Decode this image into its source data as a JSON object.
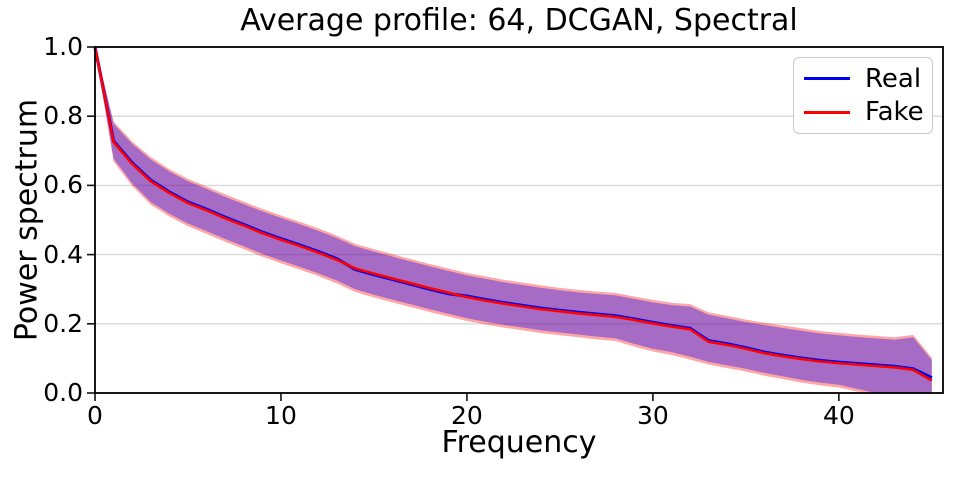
{
  "chart_data": {
    "type": "line",
    "title": "Average profile: 64, DCGAN, Spectral",
    "xlabel": "Frequency",
    "ylabel": "Power spectrum",
    "xlim": [
      0,
      45.6
    ],
    "ylim": [
      0.0,
      1.0
    ],
    "xticks": [
      0,
      10,
      20,
      30,
      40
    ],
    "xtick_labels": [
      "0",
      "10",
      "20",
      "30",
      "40"
    ],
    "yticks": [
      0.0,
      0.2,
      0.4,
      0.6,
      0.8,
      1.0
    ],
    "ytick_labels": [
      "0.0",
      "0.2",
      "0.4",
      "0.6",
      "0.8",
      "1.0"
    ],
    "grid": "horizontal",
    "grid_color": "#d9d9d9",
    "spine_color": "#000000",
    "background": "#ffffff",
    "x": [
      0,
      1,
      2,
      3,
      4,
      5,
      6,
      7,
      8,
      9,
      10,
      11,
      12,
      13,
      14,
      15,
      16,
      17,
      18,
      19,
      20,
      21,
      22,
      23,
      24,
      25,
      26,
      27,
      28,
      29,
      30,
      31,
      32,
      33,
      34,
      35,
      36,
      37,
      38,
      39,
      40,
      41,
      42,
      43,
      44,
      45
    ],
    "series": [
      {
        "name": "Real",
        "color": "#0000ee",
        "values": [
          1.0,
          0.728,
          0.665,
          0.615,
          0.581,
          0.552,
          0.531,
          0.508,
          0.487,
          0.465,
          0.446,
          0.428,
          0.409,
          0.388,
          0.357,
          0.342,
          0.328,
          0.314,
          0.3,
          0.287,
          0.28,
          0.27,
          0.261,
          0.253,
          0.245,
          0.239,
          0.233,
          0.228,
          0.223,
          0.214,
          0.204,
          0.195,
          0.187,
          0.151,
          0.142,
          0.131,
          0.118,
          0.109,
          0.101,
          0.094,
          0.089,
          0.085,
          0.081,
          0.077,
          0.07,
          0.044
        ]
      },
      {
        "name": "Fake",
        "color": "#ff0000",
        "values": [
          1.0,
          0.725,
          0.662,
          0.612,
          0.578,
          0.549,
          0.528,
          0.505,
          0.484,
          0.462,
          0.443,
          0.425,
          0.406,
          0.385,
          0.36,
          0.345,
          0.331,
          0.317,
          0.303,
          0.29,
          0.277,
          0.267,
          0.258,
          0.25,
          0.242,
          0.236,
          0.23,
          0.225,
          0.22,
          0.211,
          0.201,
          0.192,
          0.184,
          0.148,
          0.139,
          0.128,
          0.115,
          0.106,
          0.098,
          0.091,
          0.086,
          0.082,
          0.078,
          0.074,
          0.067,
          0.036
        ]
      }
    ],
    "band": {
      "upper": [
        1.0,
        0.778,
        0.72,
        0.675,
        0.64,
        0.612,
        0.59,
        0.567,
        0.546,
        0.525,
        0.506,
        0.488,
        0.469,
        0.448,
        0.424,
        0.409,
        0.394,
        0.38,
        0.366,
        0.353,
        0.34,
        0.33,
        0.32,
        0.312,
        0.304,
        0.297,
        0.291,
        0.286,
        0.282,
        0.272,
        0.262,
        0.254,
        0.25,
        0.226,
        0.216,
        0.205,
        0.196,
        0.188,
        0.18,
        0.172,
        0.167,
        0.162,
        0.158,
        0.154,
        0.161,
        0.095
      ],
      "lower": [
        1.0,
        0.677,
        0.606,
        0.552,
        0.518,
        0.49,
        0.468,
        0.445,
        0.424,
        0.402,
        0.383,
        0.365,
        0.346,
        0.325,
        0.3,
        0.284,
        0.27,
        0.256,
        0.242,
        0.229,
        0.216,
        0.206,
        0.197,
        0.189,
        0.181,
        0.175,
        0.169,
        0.163,
        0.158,
        0.142,
        0.128,
        0.118,
        0.105,
        0.09,
        0.08,
        0.07,
        0.058,
        0.048,
        0.038,
        0.03,
        0.024,
        0.012,
        0.0,
        0.0,
        0.0,
        0.0
      ],
      "fill_real": "#0000ff",
      "fill_fake": "#ff0000",
      "alpha": 0.35
    },
    "legend": {
      "position": "upper right",
      "entries": [
        {
          "label": "Real",
          "color": "#0000ee"
        },
        {
          "label": "Fake",
          "color": "#ff0000"
        }
      ]
    }
  }
}
